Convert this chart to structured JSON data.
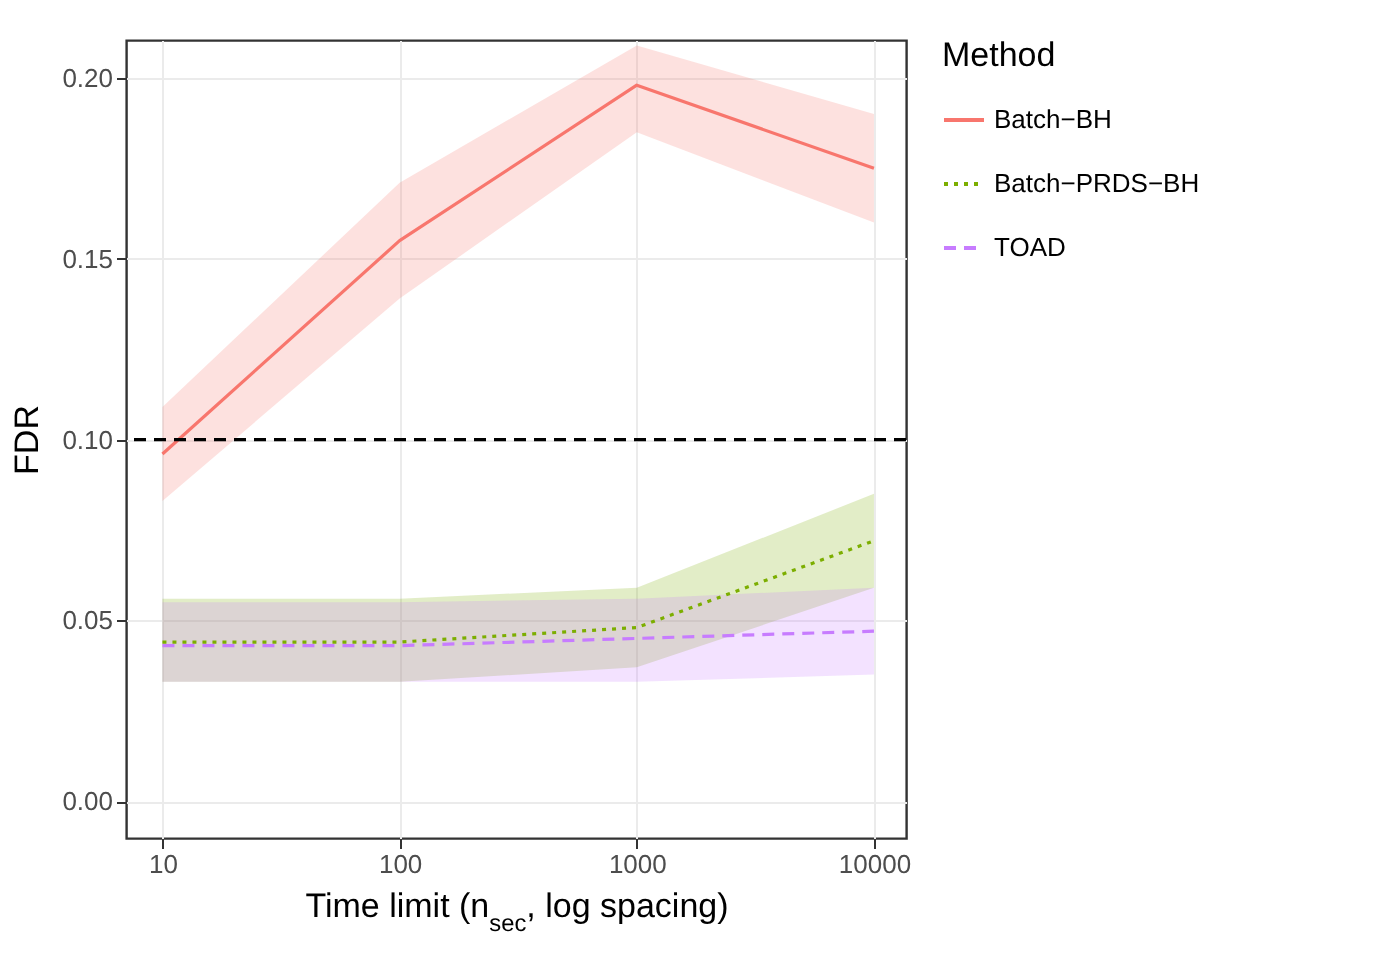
{
  "chart_data": {
    "type": "line",
    "xlabel": "Time limit (n$_{sec}$, log spacing)",
    "ylabel": "FDR",
    "legend_title": "Method",
    "legend": "right",
    "grid": true,
    "log": "x",
    "x": [
      10,
      100,
      1000,
      10000
    ],
    "xlim": [
      7.02,
      13650
    ],
    "xticks": [
      10,
      100,
      1000,
      10000
    ],
    "ylim": [
      -0.0102,
      0.2105
    ],
    "yticks": [
      {
        "value": 0,
        "label": "0.00"
      },
      {
        "value": 0.05,
        "label": "0.05"
      },
      {
        "value": 0.1,
        "label": "0.10"
      },
      {
        "value": 0.15,
        "label": "0.15"
      },
      {
        "value": 0.2,
        "label": "0.20"
      }
    ],
    "series": [
      {
        "name": "Batch−BH",
        "color": "#f8766d",
        "line_style": "solid",
        "values": [
          0.096,
          0.155,
          0.198,
          0.175
        ],
        "lower": [
          0.083,
          0.139,
          0.185,
          0.16
        ],
        "upper": [
          0.109,
          0.171,
          0.209,
          0.19
        ]
      },
      {
        "name": "Batch−PRDS−BH",
        "color": "#7cae00",
        "line_style": "dotted",
        "values": [
          0.044,
          0.044,
          0.048,
          0.072
        ],
        "lower": [
          0.033,
          0.033,
          0.037,
          0.059
        ],
        "upper": [
          0.056,
          0.056,
          0.059,
          0.085
        ]
      },
      {
        "name": "TOAD",
        "color": "#c77cff",
        "line_style": "dashed",
        "values": [
          0.043,
          0.043,
          0.045,
          0.047
        ],
        "lower": [
          0.033,
          0.033,
          0.033,
          0.035
        ],
        "upper": [
          0.055,
          0.055,
          0.056,
          0.059
        ]
      }
    ],
    "ref_lines": [
      {
        "axis": "y",
        "value": 0.1,
        "color": "#000000",
        "line_style": "dashed"
      }
    ]
  }
}
